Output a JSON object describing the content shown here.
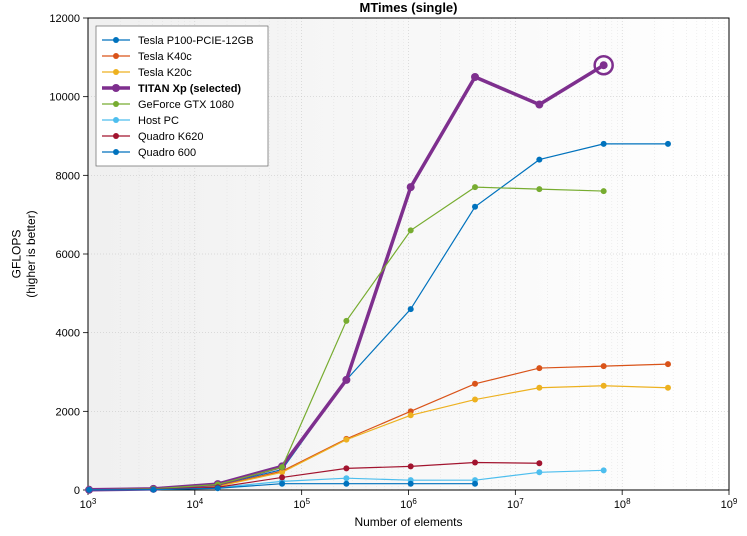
{
  "chart": {
    "type": "line",
    "title": "MTimes (single)",
    "title_fontsize": 13,
    "xlabel": "Number of elements",
    "ylabel": "GFLOPS\n(higher is better)",
    "label_fontsize": 12,
    "background_gradient": {
      "from": "#f0f0f0",
      "to": "#ffffff"
    },
    "plot_border_color": "#000000",
    "grid_color": "#c0c0c0",
    "grid_minor_color": "#d8d8d8",
    "x": {
      "scale": "log",
      "lim": [
        1000,
        1000000000
      ],
      "ticks": [
        1000,
        10000,
        100000,
        1000000,
        10000000,
        100000000,
        1000000000
      ],
      "tick_labels": [
        "10^3",
        "10^4",
        "10^5",
        "10^6",
        "10^7",
        "10^8",
        "10^9"
      ]
    },
    "y": {
      "scale": "linear",
      "lim": [
        0,
        12000
      ],
      "tick_step": 2000,
      "ticks": [
        0,
        2000,
        4000,
        6000,
        8000,
        10000,
        12000
      ],
      "tick_labels": [
        "0",
        "2000",
        "4000",
        "6000",
        "8000",
        "10000",
        "12000"
      ]
    },
    "marker_size": 4,
    "line_width_normal": 1.2,
    "line_width_selected": 3.5,
    "selected_end_ring": {
      "radius": 9,
      "stroke_width": 2.5
    },
    "legend": {
      "position": "upper-left",
      "items": [
        {
          "label": "Tesla P100-PCIE-12GB",
          "color": "#0072bd",
          "bold": false
        },
        {
          "label": "Tesla K40c",
          "color": "#d95319",
          "bold": false
        },
        {
          "label": "Tesla K20c",
          "color": "#edb120",
          "bold": false
        },
        {
          "label": "TITAN Xp (selected)",
          "color": "#7e2f8e",
          "bold": true
        },
        {
          "label": "GeForce GTX 1080",
          "color": "#77ac30",
          "bold": false
        },
        {
          "label": "Host PC",
          "color": "#4dbeee",
          "bold": false
        },
        {
          "label": "Quadro K620",
          "color": "#a2142f",
          "bold": false
        },
        {
          "label": "Quadro 600",
          "color": "#0072bd",
          "bold": false
        }
      ]
    },
    "series": [
      {
        "name": "Tesla P100-PCIE-12GB",
        "color": "#0072bd",
        "selected": false,
        "x": [
          1024,
          4096,
          16384,
          65536,
          262144,
          1048576,
          4194304,
          16777216,
          67108864,
          268435456
        ],
        "y": [
          5,
          25,
          120,
          520,
          2800,
          4600,
          7200,
          8400,
          8800,
          8800
        ]
      },
      {
        "name": "Tesla K40c",
        "color": "#d95319",
        "selected": false,
        "x": [
          1024,
          4096,
          16384,
          65536,
          262144,
          1048576,
          4194304,
          16777216,
          67108864,
          268435456
        ],
        "y": [
          5,
          20,
          100,
          480,
          1300,
          2000,
          2700,
          3100,
          3150,
          3200
        ]
      },
      {
        "name": "Tesla K20c",
        "color": "#edb120",
        "selected": false,
        "x": [
          1024,
          4096,
          16384,
          65536,
          262144,
          1048576,
          4194304,
          16777216,
          67108864,
          268435456
        ],
        "y": [
          5,
          20,
          90,
          450,
          1280,
          1900,
          2300,
          2600,
          2650,
          2600
        ]
      },
      {
        "name": "TITAN Xp (selected)",
        "color": "#7e2f8e",
        "selected": true,
        "x": [
          1024,
          4096,
          16384,
          65536,
          262144,
          1048576,
          4194304,
          16777216,
          67108864
        ],
        "y": [
          5,
          30,
          150,
          600,
          2800,
          7700,
          10500,
          9800,
          10800
        ]
      },
      {
        "name": "GeForce GTX 1080",
        "color": "#77ac30",
        "selected": false,
        "x": [
          1024,
          4096,
          16384,
          65536,
          262144,
          1048576,
          4194304,
          16777216,
          67108864
        ],
        "y": [
          5,
          28,
          140,
          580,
          4300,
          6600,
          7700,
          7650,
          7600
        ]
      },
      {
        "name": "Host PC",
        "color": "#4dbeee",
        "selected": false,
        "x": [
          1024,
          4096,
          16384,
          65536,
          262144,
          1048576,
          4194304,
          16777216,
          67108864
        ],
        "y": [
          5,
          12,
          60,
          220,
          300,
          250,
          250,
          450,
          500
        ]
      },
      {
        "name": "Quadro K620",
        "color": "#a2142f",
        "selected": false,
        "x": [
          1024,
          4096,
          16384,
          65536,
          262144,
          1048576,
          4194304,
          16777216
        ],
        "y": [
          4,
          15,
          70,
          320,
          550,
          600,
          700,
          680
        ]
      },
      {
        "name": "Quadro 600",
        "color": "#0072bd",
        "selected": false,
        "x": [
          1024,
          4096,
          16384,
          65536,
          262144,
          1048576,
          4194304
        ],
        "y": [
          3,
          10,
          45,
          160,
          160,
          160,
          160
        ]
      }
    ]
  }
}
